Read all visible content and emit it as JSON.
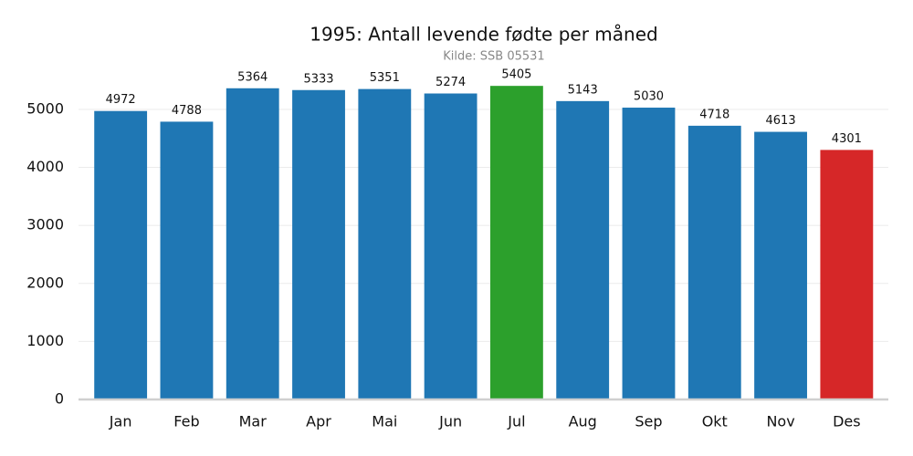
{
  "chart_data": {
    "type": "bar",
    "title": "1995: Antall levende fødte per måned",
    "subtitle": "Kilde: SSB 05531",
    "categories": [
      "Jan",
      "Feb",
      "Mar",
      "Apr",
      "Mai",
      "Jun",
      "Jul",
      "Aug",
      "Sep",
      "Okt",
      "Nov",
      "Des"
    ],
    "values": [
      4972,
      4788,
      5364,
      5333,
      5351,
      5274,
      5405,
      5143,
      5030,
      4718,
      4613,
      4301
    ],
    "colors": [
      "#1f77b4",
      "#1f77b4",
      "#1f77b4",
      "#1f77b4",
      "#1f77b4",
      "#1f77b4",
      "#2ca02c",
      "#1f77b4",
      "#1f77b4",
      "#1f77b4",
      "#1f77b4",
      "#d62728"
    ],
    "ylim": [
      0,
      5675
    ],
    "yticks": [
      0,
      1000,
      2000,
      3000,
      4000,
      5000
    ],
    "grid": true
  }
}
